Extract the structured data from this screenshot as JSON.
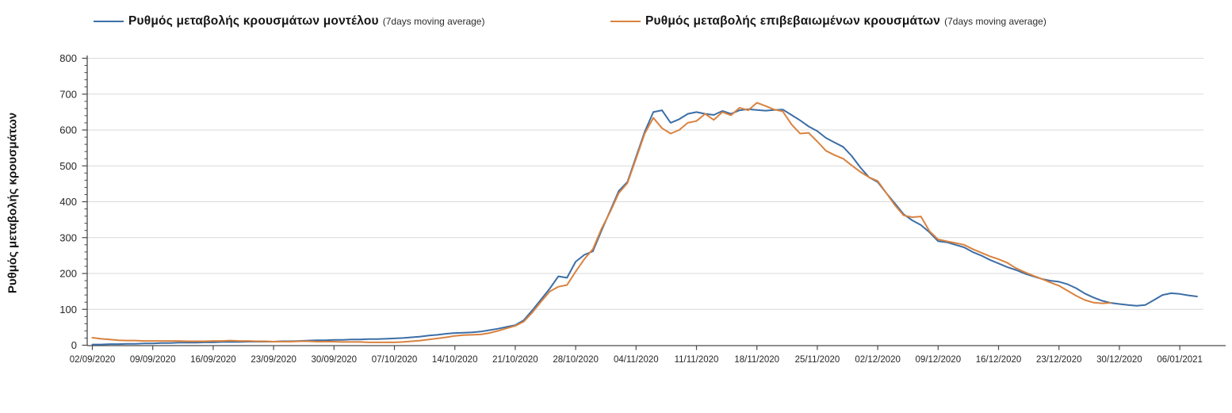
{
  "colors": {
    "series_model": "#3C6EA6",
    "series_confirmed": "#D9823F",
    "grid": "#D9D9D9",
    "axis": "#4a4a4a",
    "tick_text": "#262626",
    "label_text": "#151515"
  },
  "chart_data": {
    "type": "line",
    "title": "",
    "xlabel": "",
    "ylabel": "Ρυθμός μεταβολής κρουσμάτων",
    "ylim": [
      0,
      800
    ],
    "y_major_tick_step": 100,
    "y_minor_tick_step": 20,
    "grid": "horizontal-only",
    "legend_position": "top",
    "x_start_date": "02/09/2020",
    "x_step_days": 1,
    "y_tick_labels": [
      "0",
      "100",
      "200",
      "300",
      "400",
      "500",
      "600",
      "700",
      "800"
    ],
    "x_tick_labels": [
      "02/09/2020",
      "09/09/2020",
      "16/09/2020",
      "23/09/2020",
      "30/09/2020",
      "07/10/2020",
      "14/10/2020",
      "21/10/2020",
      "28/10/2020",
      "04/11/2020",
      "11/11/2020",
      "18/11/2020",
      "25/11/2020",
      "02/12/2020",
      "09/12/2020",
      "16/12/2020",
      "23/12/2020",
      "30/12/2020",
      "06/01/2021"
    ],
    "x_ticks_every_days": 7,
    "series": [
      {
        "name": "Ρυθμός μεταβολής κρουσμάτων μοντέλου",
        "sublabel": "(7days moving average)",
        "color": "#3C6EA6",
        "values": [
          2,
          2,
          3,
          3,
          4,
          4,
          5,
          5,
          6,
          6,
          7,
          7,
          7,
          8,
          8,
          9,
          9,
          9,
          10,
          10,
          10,
          10,
          11,
          11,
          12,
          13,
          14,
          14,
          15,
          15,
          16,
          16,
          17,
          17,
          18,
          19,
          20,
          22,
          24,
          27,
          29,
          32,
          34,
          35,
          36,
          38,
          42,
          46,
          51,
          56,
          70,
          98,
          128,
          158,
          192,
          188,
          233,
          252,
          262,
          320,
          375,
          430,
          455,
          525,
          595,
          650,
          655,
          620,
          630,
          645,
          650,
          645,
          642,
          653,
          645,
          655,
          658,
          656,
          654,
          656,
          657,
          642,
          627,
          610,
          597,
          578,
          565,
          553,
          527,
          495,
          468,
          455,
          424,
          395,
          365,
          348,
          335,
          315,
          290,
          287,
          280,
          273,
          260,
          250,
          238,
          228,
          218,
          210,
          200,
          192,
          185,
          180,
          177,
          170,
          159,
          144,
          133,
          124,
          118,
          115,
          112,
          110,
          112,
          126,
          140,
          145,
          143,
          139,
          136
        ]
      },
      {
        "name": "Ρυθμός μεταβολής επιβεβαιωμένων κρουσμάτων",
        "sublabel": "(7days moving average)",
        "color": "#D9823F",
        "values": [
          21,
          18,
          16,
          14,
          13,
          13,
          12,
          12,
          12,
          12,
          12,
          11,
          11,
          11,
          12,
          12,
          13,
          12,
          12,
          11,
          11,
          10,
          10,
          10,
          11,
          11,
          10,
          10,
          10,
          9,
          9,
          9,
          8,
          8,
          8,
          8,
          9,
          11,
          13,
          16,
          19,
          22,
          26,
          28,
          29,
          30,
          34,
          40,
          47,
          54,
          66,
          92,
          122,
          150,
          163,
          168,
          205,
          240,
          268,
          325,
          372,
          424,
          452,
          520,
          590,
          634,
          605,
          590,
          600,
          620,
          625,
          645,
          628,
          650,
          641,
          662,
          655,
          676,
          667,
          657,
          652,
          616,
          590,
          592,
          568,
          542,
          530,
          520,
          501,
          483,
          468,
          458,
          424,
          390,
          362,
          357,
          359,
          318,
          295,
          290,
          285,
          280,
          268,
          258,
          248,
          240,
          230,
          215,
          204,
          194,
          185,
          175,
          166,
          152,
          138,
          126,
          119,
          117,
          118
        ]
      }
    ]
  }
}
